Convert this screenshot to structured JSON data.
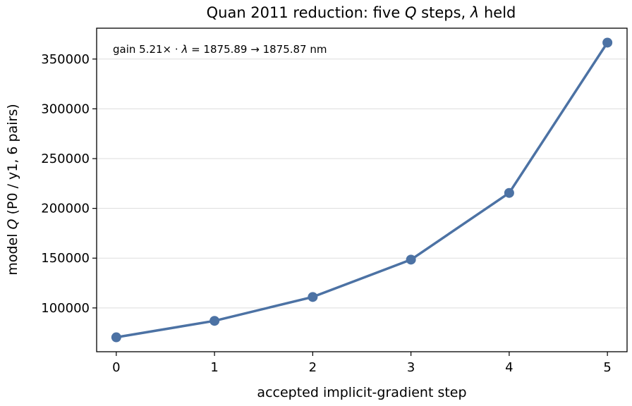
{
  "chart_data": {
    "type": "line",
    "title_prefix": "Quan 2011 reduction: five ",
    "title_q": "Q",
    "title_mid": " steps, ",
    "title_lambda": "λ",
    "title_suffix": " held",
    "xlabel": "accepted implicit-gradient step",
    "ylabel_prefix": "model ",
    "ylabel_q": "Q",
    "ylabel_suffix": " (P0 / y1, 6 pairs)",
    "annotation_prefix": "gain 5.21×  ·  ",
    "annotation_lambda": "λ",
    "annotation_suffix": " = 1875.89 → 1875.87 nm",
    "x": [
      0,
      1,
      2,
      3,
      4,
      5
    ],
    "y": [
      70500,
      87000,
      111000,
      148500,
      215500,
      366500
    ],
    "xlim": [
      -0.2,
      5.2
    ],
    "ylim": [
      56000,
      381000
    ],
    "xticks": [
      0,
      1,
      2,
      3,
      4,
      5
    ],
    "yticks": [
      100000,
      150000,
      200000,
      250000,
      300000,
      350000
    ],
    "grid": "horizontal",
    "color": "#4c72a4"
  }
}
